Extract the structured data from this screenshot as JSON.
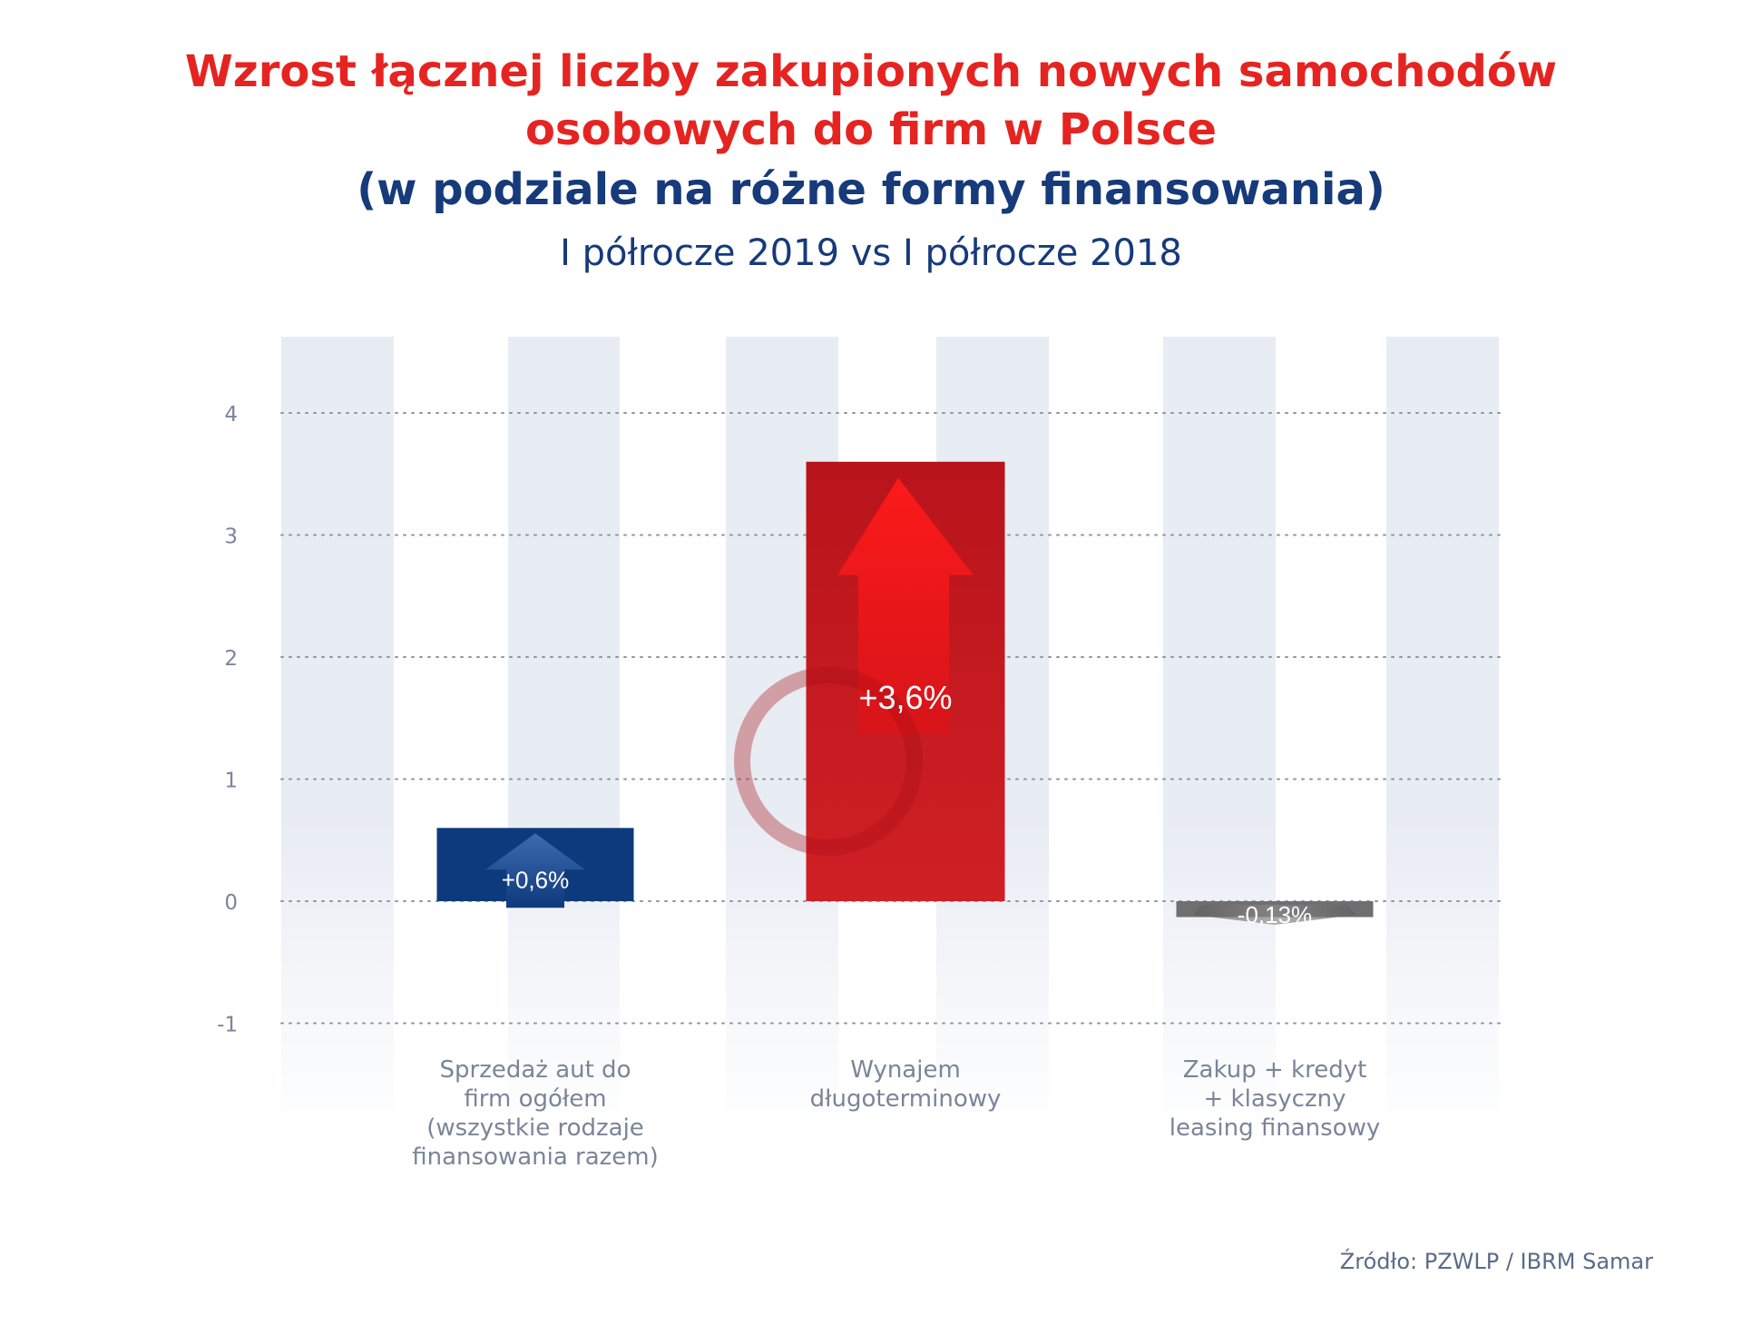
{
  "title_line1": "Wzrost łącznej liczby zakupionych nowych samochodów",
  "title_line2": "osobowych do firm w Polsce",
  "title_line3": "(w podziale na różne formy finansowania)",
  "subtitle": "I półrocze 2019 vs I półrocze 2018",
  "source": "Źródło: PZWLP / IBRM Samar",
  "colors": {
    "title_red": "#e52421",
    "title_blue": "#163a7a",
    "bar_blue": "#0d3a7c",
    "bar_red": "#c4141c",
    "bar_gray": "#6f6f6f",
    "axis_text": "#7a8599",
    "category_text": "#7a8599",
    "stripe": "#e8ecf3"
  },
  "chart_data": {
    "type": "bar",
    "categories": [
      [
        "Sprzedaż aut do",
        "firm ogółem",
        "(wszystkie rodzaje",
        "finansowania razem)"
      ],
      [
        "Wynajem",
        "długoterminowy"
      ],
      [
        "Zakup + kredyt",
        "+ klasyczny",
        "leasing finansowy"
      ]
    ],
    "values": [
      0.6,
      3.6,
      -0.13
    ],
    "data_labels": [
      "+0,6%",
      "+3,6%",
      "-0,13%"
    ],
    "bar_colors": [
      "#0d3a7c",
      "#c4141c",
      "#6f6f6f"
    ],
    "yticks": [
      4,
      3,
      2,
      1,
      0,
      -1
    ],
    "ylim": [
      -1,
      4
    ],
    "grid": true,
    "grid_style": "dotted"
  }
}
